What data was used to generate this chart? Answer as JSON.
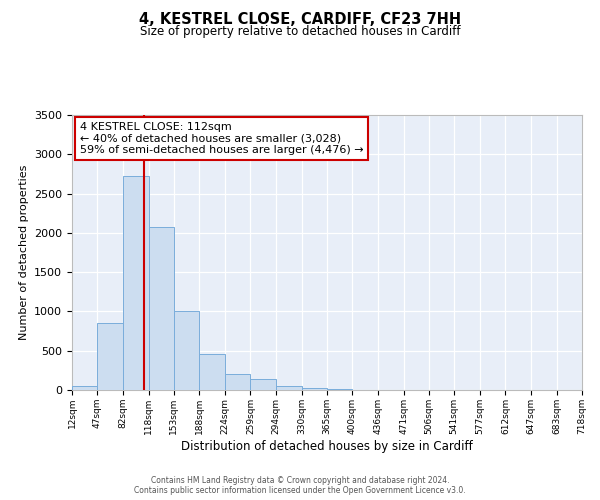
{
  "title": "4, KESTREL CLOSE, CARDIFF, CF23 7HH",
  "subtitle": "Size of property relative to detached houses in Cardiff",
  "xlabel": "Distribution of detached houses by size in Cardiff",
  "ylabel": "Number of detached properties",
  "bar_color": "#ccddf0",
  "bar_edge_color": "#7aaddb",
  "background_color": "#e8eef8",
  "plot_bg_color": "#e8eef8",
  "fig_bg_color": "#ffffff",
  "grid_color": "#ffffff",
  "vline_x": 112,
  "vline_color": "#cc0000",
  "bin_edges": [
    12,
    47,
    82,
    118,
    153,
    188,
    224,
    259,
    294,
    330,
    365,
    400,
    436,
    471,
    506,
    541,
    577,
    612,
    647,
    683,
    718
  ],
  "bar_heights": [
    55,
    850,
    2725,
    2075,
    1010,
    455,
    210,
    145,
    55,
    25,
    15,
    5,
    2,
    1,
    1,
    0,
    0,
    0,
    0,
    0
  ],
  "ylim": [
    0,
    3500
  ],
  "yticks": [
    0,
    500,
    1000,
    1500,
    2000,
    2500,
    3000,
    3500
  ],
  "annotation_title": "4 KESTREL CLOSE: 112sqm",
  "annotation_line1": "← 40% of detached houses are smaller (3,028)",
  "annotation_line2": "59% of semi-detached houses are larger (4,476) →",
  "annotation_box_color": "#ffffff",
  "annotation_box_edge": "#cc0000",
  "footer_line1": "Contains HM Land Registry data © Crown copyright and database right 2024.",
  "footer_line2": "Contains public sector information licensed under the Open Government Licence v3.0.",
  "tick_labels": [
    "12sqm",
    "47sqm",
    "82sqm",
    "118sqm",
    "153sqm",
    "188sqm",
    "224sqm",
    "259sqm",
    "294sqm",
    "330sqm",
    "365sqm",
    "400sqm",
    "436sqm",
    "471sqm",
    "506sqm",
    "541sqm",
    "577sqm",
    "612sqm",
    "647sqm",
    "683sqm",
    "718sqm"
  ]
}
